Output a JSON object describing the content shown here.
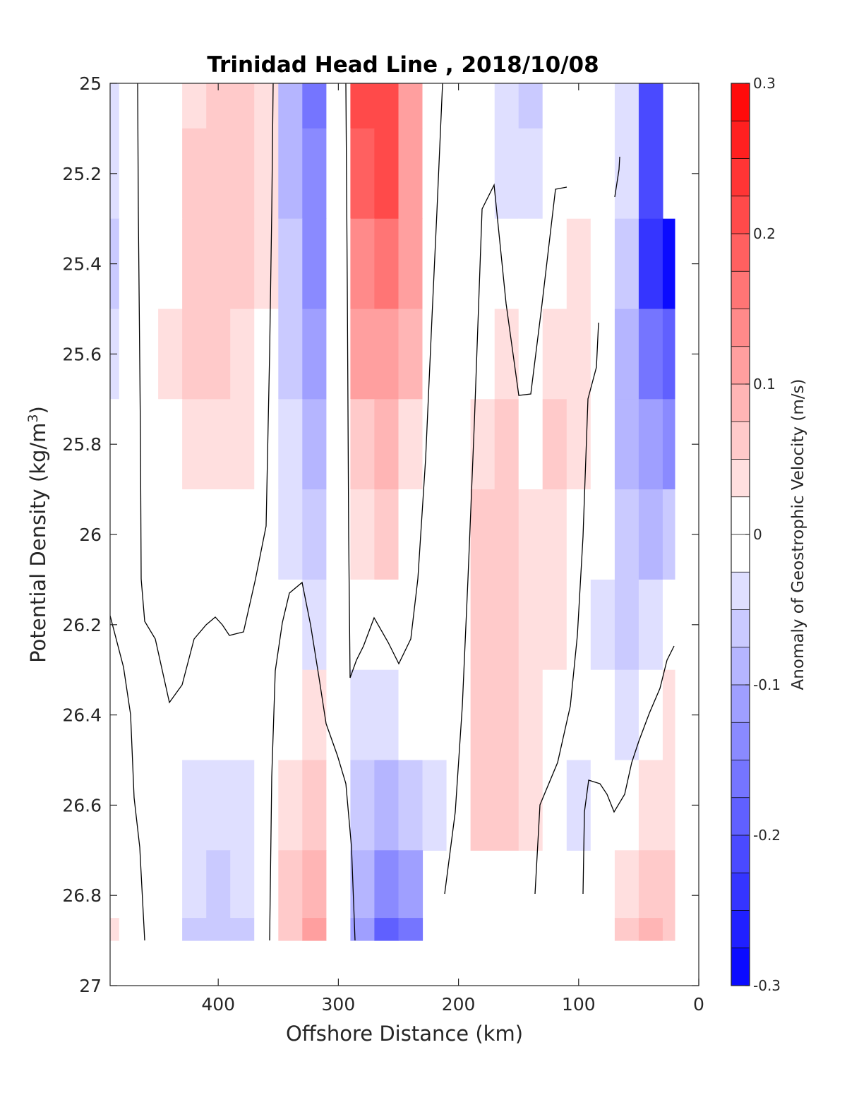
{
  "chart_data": {
    "type": "heatmap",
    "title": "Trinidad Head Line , 2018/10/08",
    "xlabel": "Offshore Distance (km)",
    "ylabel_base": "Potential Density (kg/m",
    "ylabel_sup": "3",
    "ylabel_close": ")",
    "xlim": [
      490,
      0
    ],
    "ylim": [
      25,
      27
    ],
    "x_ticks": [
      400,
      300,
      200,
      100,
      0
    ],
    "y_ticks": [
      25,
      25.2,
      25.4,
      25.6,
      25.8,
      26,
      26.2,
      26.4,
      26.6,
      26.8,
      27
    ],
    "y_tick_labels": [
      "25",
      "25.2",
      "25.4",
      "25.6",
      "25.8",
      "26",
      "26.2",
      "26.4",
      "26.6",
      "26.8",
      "27"
    ],
    "colorbar": {
      "label": "Anomaly of Geostrophic Velocity (m/s)",
      "clim": [
        -0.3,
        0.3
      ],
      "levels": 24,
      "ticks": [
        0.3,
        0.2,
        0.1,
        0,
        -0.1,
        -0.2,
        -0.3
      ],
      "tick_labels": [
        "0.3",
        "0.2",
        "0.1",
        "0",
        "-0.1",
        "-0.2",
        "-0.3"
      ],
      "colormap": "blue-white-red",
      "low_color": "#0000ff",
      "high_color": "#ff0000",
      "mid_color": "#ffffff"
    },
    "stations_x": [
      490,
      475,
      460,
      440,
      420,
      400,
      380,
      360,
      340,
      320,
      300,
      280,
      260,
      240,
      220,
      200,
      180,
      160,
      140,
      120,
      100,
      80,
      60,
      40,
      20
    ],
    "density_y": [
      25.0,
      25.2,
      25.4,
      25.6,
      25.8,
      26.0,
      26.2,
      26.4,
      26.6,
      26.8,
      26.9
    ],
    "velocity_grid": [
      [
        -0.03,
        -0.01,
        0.0,
        0.02,
        0.04,
        0.06,
        0.06,
        0.03,
        -0.08,
        -0.16,
        0.0,
        0.2,
        0.22,
        0.12,
        0.0,
        -0.01,
        -0.02,
        -0.03,
        -0.06,
        -0.02,
        0.0,
        0.0,
        -0.05,
        -0.2,
        null
      ],
      [
        -0.05,
        -0.02,
        0.0,
        0.02,
        0.05,
        0.07,
        0.06,
        0.03,
        -0.08,
        -0.15,
        0.0,
        0.18,
        0.2,
        0.12,
        0.0,
        -0.01,
        -0.02,
        -0.03,
        -0.05,
        -0.01,
        0.0,
        0.0,
        -0.05,
        -0.22,
        null
      ],
      [
        -0.06,
        -0.02,
        0.0,
        0.02,
        0.05,
        0.06,
        0.05,
        0.03,
        -0.07,
        -0.14,
        0.0,
        0.14,
        0.16,
        0.1,
        0.0,
        -0.01,
        0.0,
        0.01,
        0.0,
        0.02,
        0.03,
        0.02,
        -0.06,
        -0.24,
        -0.28
      ],
      [
        -0.04,
        -0.02,
        0.0,
        0.03,
        0.05,
        0.05,
        0.04,
        0.02,
        -0.06,
        -0.12,
        0.0,
        0.1,
        0.12,
        0.08,
        0.0,
        -0.01,
        0.02,
        0.04,
        0.0,
        0.04,
        0.04,
        0.0,
        -0.08,
        -0.16,
        -0.18
      ],
      [
        -0.02,
        -0.01,
        0.0,
        0.02,
        0.03,
        0.04,
        0.03,
        0.02,
        -0.05,
        -0.1,
        0.0,
        0.06,
        0.08,
        0.04,
        0.0,
        0.0,
        0.04,
        0.06,
        0.02,
        0.05,
        0.03,
        0.0,
        -0.08,
        -0.12,
        -0.14
      ],
      [
        0.0,
        0.0,
        0.0,
        0.0,
        0.0,
        0.0,
        0.0,
        0.0,
        -0.04,
        -0.07,
        0.0,
        0.03,
        0.05,
        0.02,
        0.0,
        0.0,
        0.05,
        0.06,
        0.03,
        0.04,
        0.0,
        -0.02,
        -0.07,
        -0.08,
        -0.06
      ],
      [
        0.0,
        0.0,
        0.0,
        0.0,
        0.0,
        0.0,
        0.0,
        0.0,
        -0.02,
        -0.04,
        0.0,
        0.0,
        0.02,
        0.0,
        -0.02,
        0.0,
        0.05,
        0.07,
        0.03,
        0.03,
        0.0,
        -0.03,
        -0.06,
        -0.04,
        0.0
      ],
      [
        0.0,
        0.0,
        0.0,
        0.0,
        0.0,
        0.0,
        0.0,
        0.0,
        0.02,
        0.03,
        0.0,
        -0.03,
        -0.03,
        -0.02,
        -0.02,
        0.0,
        0.06,
        0.07,
        0.03,
        0.0,
        0.0,
        0.0,
        -0.03,
        0.0,
        0.03
      ],
      [
        0.0,
        0.0,
        0.0,
        -0.01,
        -0.03,
        -0.04,
        -0.03,
        0.0,
        0.04,
        0.06,
        0.0,
        -0.06,
        -0.08,
        -0.06,
        -0.03,
        0.0,
        0.06,
        0.07,
        0.03,
        0.0,
        -0.03,
        0.0,
        0.02,
        0.04,
        0.04
      ],
      [
        0.02,
        0.0,
        0.0,
        -0.02,
        -0.05,
        -0.07,
        -0.05,
        0.0,
        0.05,
        0.09,
        0.0,
        -0.1,
        -0.14,
        -0.12,
        null,
        null,
        null,
        null,
        null,
        null,
        null,
        null,
        0.04,
        0.07,
        0.05
      ],
      [
        0.03,
        0.0,
        0.0,
        -0.02,
        -0.06,
        -0.07,
        -0.06,
        0.0,
        0.05,
        0.1,
        0.0,
        -0.12,
        -0.18,
        -0.16,
        null,
        null,
        null,
        null,
        null,
        null,
        null,
        null,
        0.05,
        0.09,
        0.06
      ]
    ]
  }
}
